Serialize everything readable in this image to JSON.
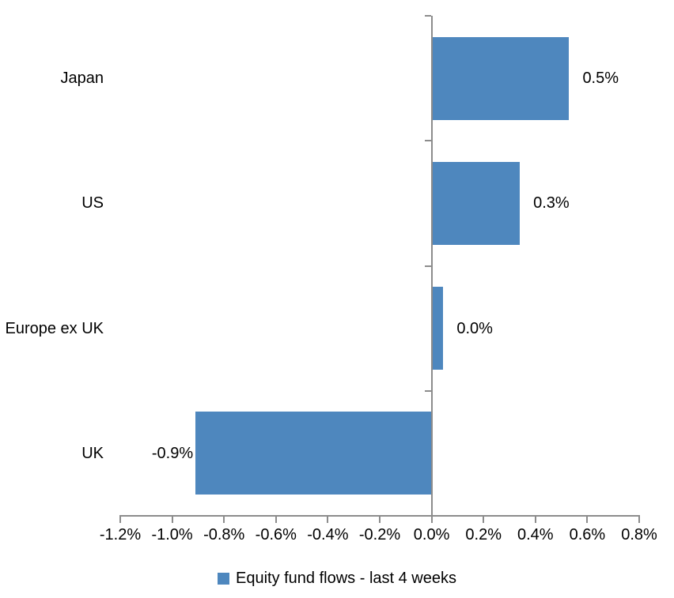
{
  "chart_data": {
    "type": "bar",
    "orientation": "horizontal",
    "title": "",
    "xlabel": "",
    "ylabel": "",
    "categories": [
      "Japan",
      "US",
      "Europe ex UK",
      "UK"
    ],
    "series": [
      {
        "name": "Equity fund flows - last 4 weeks",
        "values": [
          0.53,
          0.34,
          0.045,
          -0.91
        ],
        "data_labels": [
          "0.5%",
          "0.3%",
          "0.0%",
          "-0.9%"
        ]
      }
    ],
    "xlim": [
      -1.2,
      0.8
    ],
    "x_tick_values": [
      -1.2,
      -1.0,
      -0.8,
      -0.6,
      -0.4,
      -0.2,
      0.0,
      0.2,
      0.4,
      0.6,
      0.8
    ],
    "x_tick_labels": [
      "-1.2%",
      "-1.0%",
      "-0.8%",
      "-0.6%",
      "-0.4%",
      "-0.2%",
      "0.0%",
      "0.2%",
      "0.4%",
      "0.6%",
      "0.8%"
    ],
    "grid": false,
    "legend_position": "bottom",
    "legend": [
      {
        "label": "Equity fund flows - last 4 weeks",
        "color": "#4E87BE"
      }
    ],
    "colors": {
      "bar": "#4E87BE",
      "axis": "#8C8C8C",
      "text": "#000000",
      "background": "#FFFFFF"
    }
  }
}
